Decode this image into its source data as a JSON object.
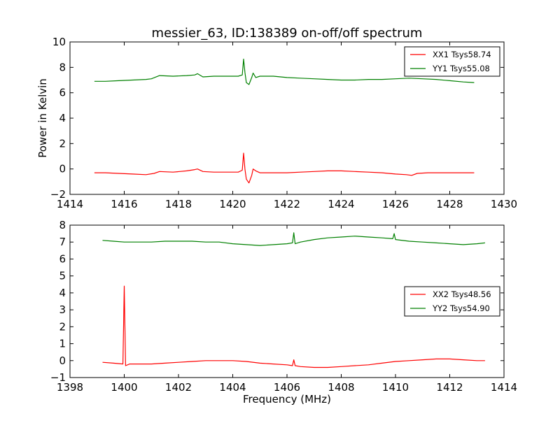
{
  "colors": {
    "xx": "#ff0000",
    "yy": "#008000",
    "axes": "#000000",
    "background": "#ffffff"
  },
  "chart_data": [
    {
      "type": "line",
      "title": "messier_63, ID:138389 on-off/off spectrum",
      "xlabel": "",
      "ylabel": "Power in Kelvin",
      "xlim": [
        1414,
        1430
      ],
      "ylim": [
        -2,
        10
      ],
      "xticks": [
        1414,
        1416,
        1418,
        1420,
        1422,
        1424,
        1426,
        1428,
        1430
      ],
      "yticks": [
        -2,
        0,
        2,
        4,
        6,
        8,
        10
      ],
      "grid": false,
      "legend_position": "top-right",
      "series": [
        {
          "name": "XX1 Tsys58.74",
          "color": "#ff0000",
          "x": [
            1414.9,
            1415.3,
            1415.8,
            1416.3,
            1416.8,
            1417.1,
            1417.3,
            1417.8,
            1418.3,
            1418.6,
            1418.7,
            1418.9,
            1419.3,
            1419.8,
            1420.2,
            1420.35,
            1420.4,
            1420.45,
            1420.5,
            1420.6,
            1420.7,
            1420.75,
            1420.85,
            1421.0,
            1421.5,
            1422.0,
            1422.5,
            1423.0,
            1423.5,
            1424.0,
            1424.5,
            1425.0,
            1425.5,
            1426.0,
            1426.4,
            1426.6,
            1426.8,
            1427.2,
            1427.6,
            1428.0,
            1428.5,
            1428.9
          ],
          "y": [
            -0.3,
            -0.3,
            -0.35,
            -0.4,
            -0.45,
            -0.35,
            -0.2,
            -0.25,
            -0.15,
            -0.05,
            0.0,
            -0.2,
            -0.25,
            -0.25,
            -0.25,
            -0.1,
            1.25,
            0.0,
            -0.8,
            -1.1,
            -0.5,
            0.0,
            -0.15,
            -0.3,
            -0.3,
            -0.3,
            -0.25,
            -0.2,
            -0.15,
            -0.15,
            -0.2,
            -0.25,
            -0.3,
            -0.4,
            -0.45,
            -0.5,
            -0.35,
            -0.3,
            -0.3,
            -0.3,
            -0.3,
            -0.3
          ]
        },
        {
          "name": "YY1 Tsys55.08",
          "color": "#008000",
          "x": [
            1414.9,
            1415.3,
            1415.8,
            1416.3,
            1416.8,
            1417.0,
            1417.3,
            1417.8,
            1418.3,
            1418.6,
            1418.7,
            1418.9,
            1419.3,
            1419.8,
            1420.2,
            1420.35,
            1420.4,
            1420.45,
            1420.5,
            1420.6,
            1420.7,
            1420.75,
            1420.85,
            1421.0,
            1421.5,
            1422.0,
            1422.5,
            1423.0,
            1423.5,
            1424.0,
            1424.5,
            1425.0,
            1425.5,
            1426.0,
            1426.5,
            1427.0,
            1427.5,
            1428.0,
            1428.5,
            1428.9
          ],
          "y": [
            6.9,
            6.9,
            6.95,
            7.0,
            7.05,
            7.1,
            7.35,
            7.3,
            7.35,
            7.4,
            7.5,
            7.25,
            7.3,
            7.3,
            7.3,
            7.4,
            8.65,
            7.6,
            6.8,
            6.65,
            7.2,
            7.55,
            7.2,
            7.3,
            7.3,
            7.2,
            7.15,
            7.1,
            7.05,
            7.0,
            7.0,
            7.05,
            7.05,
            7.1,
            7.15,
            7.1,
            7.05,
            6.95,
            6.85,
            6.8
          ]
        }
      ]
    },
    {
      "type": "line",
      "title": "",
      "xlabel": "Frequency (MHz)",
      "ylabel": "",
      "xlim": [
        1398,
        1414
      ],
      "ylim": [
        -1,
        8
      ],
      "xticks": [
        1398,
        1400,
        1402,
        1404,
        1406,
        1408,
        1410,
        1412,
        1414
      ],
      "yticks": [
        -1,
        0,
        1,
        2,
        3,
        4,
        5,
        6,
        7,
        8
      ],
      "grid": false,
      "legend_position": "center-right",
      "series": [
        {
          "name": "XX2 Tsys48.56",
          "color": "#ff0000",
          "x": [
            1399.2,
            1399.6,
            1399.95,
            1400.0,
            1400.05,
            1400.2,
            1400.6,
            1401.0,
            1401.5,
            1402.0,
            1402.5,
            1403.0,
            1403.5,
            1404.0,
            1404.5,
            1405.0,
            1405.5,
            1406.0,
            1406.2,
            1406.25,
            1406.3,
            1406.5,
            1407.0,
            1407.5,
            1408.0,
            1408.5,
            1409.0,
            1409.5,
            1410.0,
            1410.5,
            1411.0,
            1411.5,
            1412.0,
            1412.5,
            1413.0,
            1413.3
          ],
          "y": [
            -0.1,
            -0.15,
            -0.2,
            4.4,
            -0.3,
            -0.2,
            -0.2,
            -0.2,
            -0.15,
            -0.1,
            -0.05,
            0.0,
            0.0,
            0.0,
            -0.05,
            -0.15,
            -0.2,
            -0.25,
            -0.3,
            0.05,
            -0.3,
            -0.35,
            -0.4,
            -0.4,
            -0.35,
            -0.3,
            -0.25,
            -0.15,
            -0.05,
            0.0,
            0.05,
            0.1,
            0.1,
            0.05,
            0.0,
            0.0
          ]
        },
        {
          "name": "YY2 Tsys54.90",
          "color": "#008000",
          "x": [
            1399.2,
            1399.6,
            1400.0,
            1400.5,
            1401.0,
            1401.5,
            1402.0,
            1402.5,
            1403.0,
            1403.5,
            1404.0,
            1404.5,
            1405.0,
            1405.5,
            1406.0,
            1406.2,
            1406.25,
            1406.3,
            1406.5,
            1407.0,
            1407.5,
            1408.0,
            1408.5,
            1409.0,
            1409.5,
            1409.9,
            1409.95,
            1410.0,
            1410.5,
            1411.0,
            1411.5,
            1412.0,
            1412.5,
            1413.0,
            1413.3
          ],
          "y": [
            7.1,
            7.05,
            7.0,
            7.0,
            7.0,
            7.05,
            7.05,
            7.05,
            7.0,
            7.0,
            6.9,
            6.85,
            6.8,
            6.85,
            6.9,
            6.95,
            7.55,
            6.9,
            7.0,
            7.15,
            7.25,
            7.3,
            7.35,
            7.3,
            7.25,
            7.2,
            7.5,
            7.15,
            7.05,
            7.0,
            6.95,
            6.9,
            6.85,
            6.9,
            6.95
          ]
        }
      ]
    }
  ]
}
